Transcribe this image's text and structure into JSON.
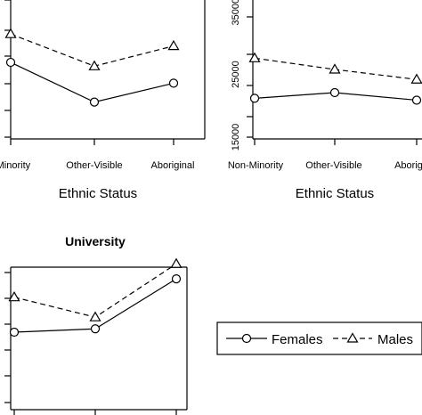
{
  "chart_data": [
    {
      "type": "line",
      "title": "",
      "xlabel": "Ethnic Status",
      "ylabel": "",
      "categories": [
        "Non-Minority",
        "Other-Visible",
        "Aboriginal"
      ],
      "category_labels_shown": [
        "n-Minority",
        "Other-Visible",
        "Aboriginal"
      ],
      "ylim": [
        15000,
        40000
      ],
      "yticks": [],
      "series": [
        {
          "name": "Females",
          "marker": "circle",
          "linestyle": "solid",
          "values": [
            27000,
            20700,
            23700
          ]
        },
        {
          "name": "Males",
          "marker": "triangle",
          "linestyle": "dashed",
          "values": [
            31500,
            26400,
            29600
          ]
        }
      ]
    },
    {
      "type": "line",
      "title": "",
      "xlabel": "Ethnic Status",
      "ylabel": "",
      "categories": [
        "Non-Minority",
        "Other-Visible",
        "Aboriginal"
      ],
      "category_labels_shown": [
        "Non-Minority",
        "Other-Visible",
        "Aborig"
      ],
      "ylim": [
        15000,
        40000
      ],
      "yticks": [
        "15000",
        "25000",
        "35000"
      ],
      "series": [
        {
          "name": "Females",
          "marker": "circle",
          "linestyle": "solid",
          "values": [
            21200,
            22100,
            20900
          ]
        },
        {
          "name": "Males",
          "marker": "triangle",
          "linestyle": "dashed",
          "values": [
            27600,
            25800,
            24200
          ]
        }
      ]
    },
    {
      "type": "line",
      "title": "University",
      "xlabel": "",
      "ylabel": "",
      "categories": [
        "Non-Minority",
        "Other-Visible",
        "Aboriginal"
      ],
      "category_labels_shown": [],
      "ylim": [
        15000,
        40000
      ],
      "yticks": [],
      "series": [
        {
          "name": "Females",
          "marker": "circle",
          "linestyle": "solid",
          "values": [
            29100,
            29500,
            35500
          ]
        },
        {
          "name": "Males",
          "marker": "triangle",
          "linestyle": "dashed",
          "values": [
            33300,
            30900,
            37300
          ]
        }
      ]
    }
  ],
  "legend": {
    "items": [
      {
        "label": "Females",
        "marker": "circle",
        "linestyle": "solid"
      },
      {
        "label": "Males",
        "marker": "triangle",
        "linestyle": "dashed"
      }
    ]
  }
}
